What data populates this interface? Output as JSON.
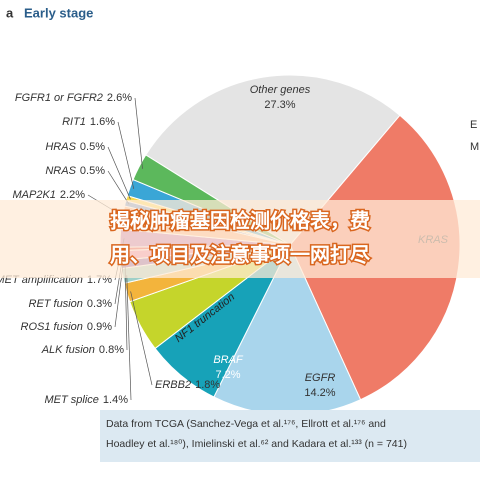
{
  "header": {
    "panel": "a",
    "title": "Early stage"
  },
  "chart_data": {
    "type": "pie",
    "categories": [
      "Other genes",
      "KRAS",
      "EGFR",
      "BRAF",
      "NF1 truncation",
      "ERBB2",
      "MET splice",
      "ALK fusion",
      "ROS1 fusion",
      "RET fusion",
      "MET amplification",
      "MAP2K1",
      "NRAS",
      "HRAS",
      "RIT1",
      "FGFR1 or FGFR2"
    ],
    "values": [
      27.3,
      32,
      14.2,
      7.2,
      5,
      1.8,
      1.4,
      0.8,
      0.9,
      0.3,
      1.7,
      2.2,
      0.5,
      0.5,
      1.6,
      2.6
    ],
    "value_labels": [
      "27.3%",
      null,
      "14.2%",
      "7.2%",
      null,
      "1.8%",
      "1.4%",
      "0.8%",
      "0.9%",
      "0.3%",
      "1.7%",
      "2.2%",
      "0.5%",
      "0.5%",
      "1.6%",
      "2.6%"
    ],
    "colors": [
      "#e4e4e4",
      "#ef7b67",
      "#a9d5ec",
      "#17a2b8",
      "#c5d52b",
      "#f3b43c",
      "#9fd0c8",
      "#7b4ea3",
      "#e87aa8",
      "#d93a3a",
      "#b86db3",
      "#f6b183",
      "#5b8fd1",
      "#f7d94c",
      "#3aa6d6",
      "#5cb85c"
    ],
    "annotations": [
      "E",
      "M"
    ]
  },
  "source_note": [
    "Data from TCGA (Sanchez-Vega et al.¹⁷⁶, Ellrott et al.¹⁷⁶ and",
    "Hoadley et al.¹⁸⁰), Imielinski et al.⁶² and Kadara et al.¹³³ (n = 741)"
  ],
  "overlay_title": [
    "揭秘肿瘤基因检测价格表，费",
    "用、项目及注意事项一网打尽"
  ]
}
